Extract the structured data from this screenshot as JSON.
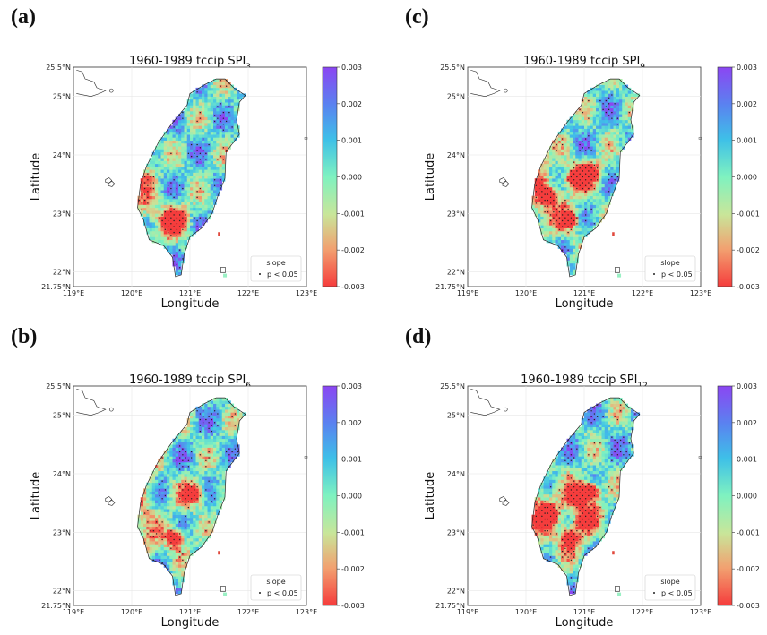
{
  "chart_data": [
    {
      "type": "heatmap",
      "panel_label": "(a)",
      "title": "1960-1989 tccip SPI",
      "title_sub": "3",
      "xlabel": "Longitude",
      "ylabel": "Latitude",
      "xlim": [
        119,
        123
      ],
      "ylim": [
        21.75,
        25.5
      ],
      "xticks": [
        "119°E",
        "120°E",
        "121°E",
        "122°E",
        "123°E"
      ],
      "yticks": [
        "21.75°N",
        "22°N",
        "23°N",
        "24°N",
        "25°N",
        "25.5°N"
      ],
      "colorbar_range": [
        -0.003,
        0.003
      ],
      "colorbar_ticks": [
        "0.003",
        "0.002",
        "0.001",
        "0.000",
        "-0.001",
        "-0.002",
        "-0.003"
      ],
      "legend_title": "slope",
      "legend_entry": "p < 0.05",
      "negative_hotspots": [
        [
          120.75,
          22.9
        ],
        [
          120.7,
          22.85
        ]
      ]
    },
    {
      "type": "heatmap",
      "panel_label": "(c)",
      "title": "1960-1989 tccip SPI",
      "title_sub": "9",
      "xlabel": "Longitude",
      "ylabel": "Latitude",
      "xlim": [
        119,
        123
      ],
      "ylim": [
        21.75,
        25.5
      ],
      "xticks": [
        "119°E",
        "120°E",
        "121°E",
        "122°E",
        "123°E"
      ],
      "yticks": [
        "21.75°N",
        "22°N",
        "23°N",
        "24°N",
        "25°N",
        "25.5°N"
      ],
      "colorbar_range": [
        -0.003,
        0.003
      ],
      "colorbar_ticks": [
        "0.003",
        "0.002",
        "0.001",
        "0.000",
        "-0.001",
        "-0.002",
        "-0.003"
      ],
      "legend_title": "slope",
      "legend_entry": "p < 0.05",
      "negative_hotspots": [
        [
          120.75,
          22.9
        ],
        [
          120.85,
          23.6
        ],
        [
          120.4,
          23.3
        ],
        [
          121.1,
          23.7
        ]
      ]
    },
    {
      "type": "heatmap",
      "panel_label": "(b)",
      "title": "1960-1989 tccip SPI",
      "title_sub": "6",
      "xlabel": "Longitude",
      "ylabel": "Latitude",
      "xlim": [
        119,
        123
      ],
      "ylim": [
        21.75,
        25.5
      ],
      "xticks": [
        "119°E",
        "120°E",
        "121°E",
        "122°E",
        "123°E"
      ],
      "yticks": [
        "21.75°N",
        "22°N",
        "23°N",
        "24°N",
        "25°N",
        "25.5°N"
      ],
      "colorbar_range": [
        -0.003,
        0.003
      ],
      "colorbar_ticks": [
        "0.003",
        "0.002",
        "0.001",
        "0.000",
        "-0.001",
        "-0.002",
        "-0.003"
      ],
      "legend_title": "slope",
      "legend_entry": "p < 0.05",
      "negative_hotspots": [
        [
          120.75,
          22.9
        ],
        [
          121.05,
          23.65
        ]
      ]
    },
    {
      "type": "heatmap",
      "panel_label": "(d)",
      "title": "1960-1989 tccip SPI",
      "title_sub": "12",
      "xlabel": "Longitude",
      "ylabel": "Latitude",
      "xlim": [
        119,
        123
      ],
      "ylim": [
        21.75,
        25.5
      ],
      "xticks": [
        "119°E",
        "120°E",
        "121°E",
        "122°E",
        "123°E"
      ],
      "yticks": [
        "21.75°N",
        "22°N",
        "23°N",
        "24°N",
        "25°N",
        "25.5°N"
      ],
      "colorbar_range": [
        -0.003,
        0.003
      ],
      "colorbar_ticks": [
        "0.003",
        "0.002",
        "0.001",
        "0.000",
        "-0.001",
        "-0.002",
        "-0.003"
      ],
      "legend_title": "slope",
      "legend_entry": "p < 0.05",
      "negative_hotspots": [
        [
          120.75,
          22.9
        ],
        [
          120.85,
          23.6
        ],
        [
          120.4,
          23.3
        ],
        [
          121.1,
          23.7
        ],
        [
          121.0,
          23.2
        ]
      ]
    }
  ],
  "colors": {
    "cmap_high": "#8b46f2",
    "cmap_mid": "#7ff2c0",
    "cmap_low": "#f53c3c"
  }
}
